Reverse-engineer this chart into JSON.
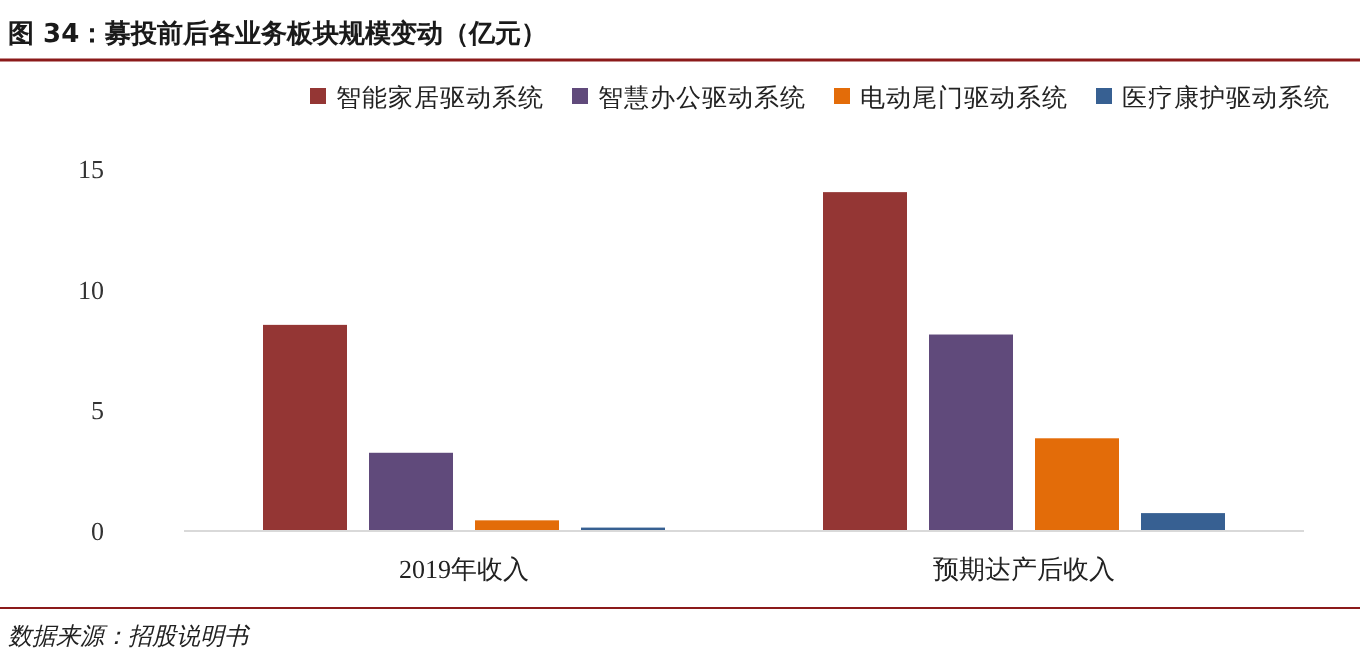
{
  "chart_data": {
    "type": "bar",
    "title": "图 34：募投前后各业务板块规模变动（亿元）",
    "categories": [
      "2019年收入",
      "预期达产后收入"
    ],
    "series": [
      {
        "name": "智能家居驱动系统",
        "color": "#943634",
        "values": [
          8.5,
          14.0
        ]
      },
      {
        "name": "智慧办公驱动系统",
        "color": "#604a7b",
        "values": [
          3.2,
          8.1
        ]
      },
      {
        "name": "电动尾门驱动系统",
        "color": "#e36c09",
        "values": [
          0.4,
          3.8
        ]
      },
      {
        "name": "医疗康护驱动系统",
        "color": "#376092",
        "values": [
          0.1,
          0.7
        ]
      }
    ],
    "ylim": [
      0,
      15
    ],
    "yticks": [
      0,
      5,
      10,
      15
    ],
    "grid": false,
    "legend": "top",
    "annotations": [
      "数据来源：招股说明书"
    ]
  }
}
